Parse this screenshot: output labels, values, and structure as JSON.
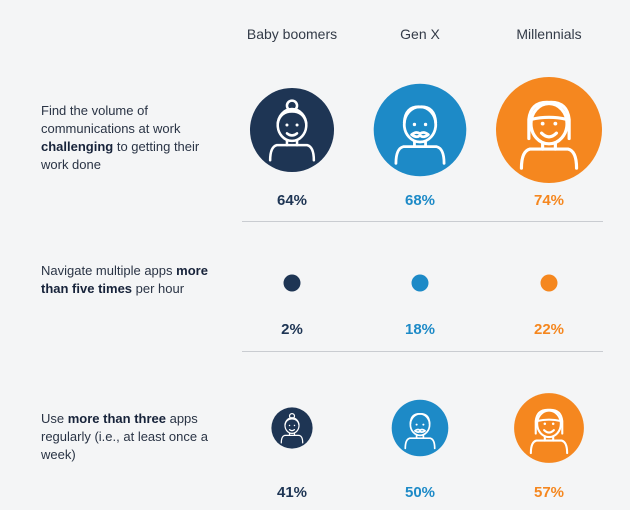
{
  "chart_data": {
    "type": "bubble",
    "groups": [
      "Baby boomers",
      "Gen X",
      "Millennials"
    ],
    "rows": [
      {
        "label_parts": [
          {
            "text": "Find the volume of communications at work ",
            "bold": false
          },
          {
            "text": "challenging",
            "bold": true
          },
          {
            "text": " to getting their work done",
            "bold": false
          }
        ],
        "values": [
          64,
          68,
          74
        ],
        "value_labels": [
          "64%",
          "68%",
          "74%"
        ]
      },
      {
        "label_parts": [
          {
            "text": "Navigate multiple apps ",
            "bold": false
          },
          {
            "text": "more than five times",
            "bold": true
          },
          {
            "text": " per hour",
            "bold": false
          }
        ],
        "values": [
          2,
          18,
          22
        ],
        "value_labels": [
          "2%",
          "18%",
          "22%"
        ]
      },
      {
        "label_parts": [
          {
            "text": "Use ",
            "bold": false
          },
          {
            "text": "more than three",
            "bold": true
          },
          {
            "text": " apps regularly (i.e., at least once a week)",
            "bold": false
          }
        ],
        "values": [
          41,
          50,
          57
        ],
        "value_labels": [
          "41%",
          "50%",
          "57%"
        ]
      }
    ],
    "colors": [
      "#1e3554",
      "#1d8ac7",
      "#f5871f"
    ],
    "icons": [
      "baby-boomer-face-icon",
      "gen-x-face-icon",
      "millennial-face-icon"
    ]
  }
}
